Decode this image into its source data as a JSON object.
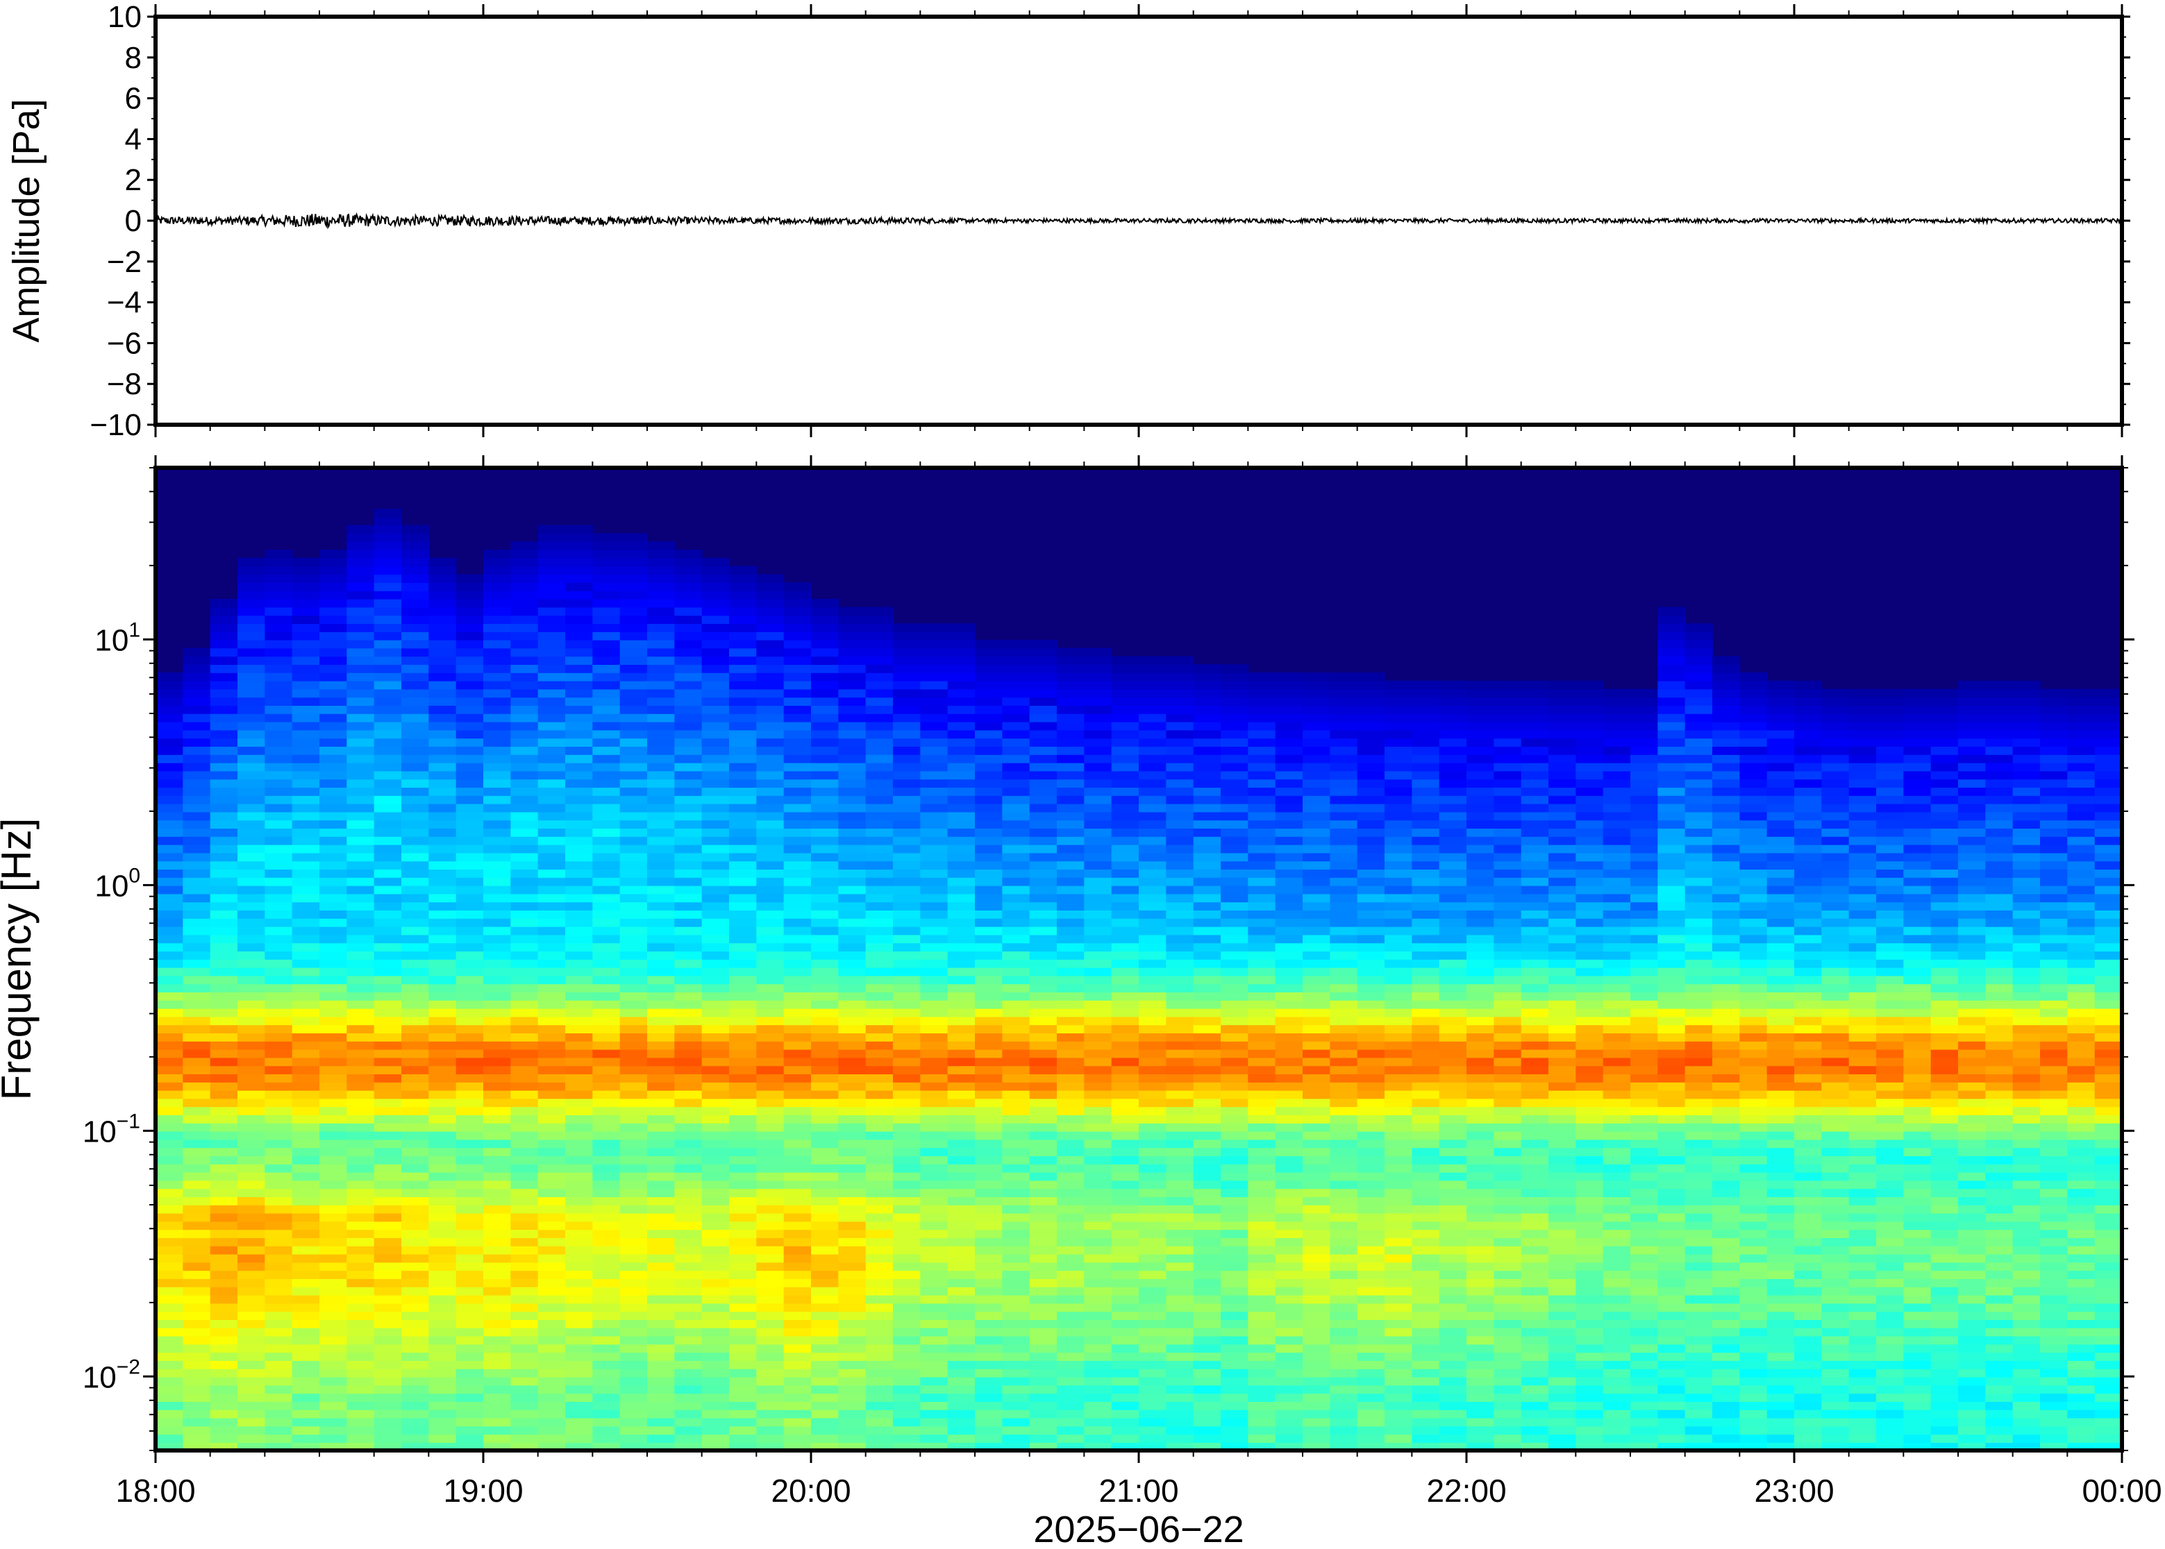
{
  "chart_data": [
    {
      "type": "line",
      "title": "",
      "xlabel": "",
      "ylabel": "Amplitude [Pa]",
      "ylim": [
        -10,
        10
      ],
      "y_ticks": [
        -10,
        -8,
        -6,
        -4,
        -2,
        0,
        2,
        4,
        6,
        8,
        10
      ],
      "y_tick_labels": [
        "−10",
        "−8",
        "−6",
        "−4",
        "−2",
        "0",
        "2",
        "4",
        "6",
        "8",
        "10"
      ],
      "x_range": [
        "2025-06-22 18:00",
        "2025-06-23 00:00"
      ],
      "series": [
        {
          "description_note": "",
          "x": [
            "18:00",
            "18:15",
            "18:30",
            "18:45",
            "19:00",
            "19:15",
            "19:30",
            "19:45",
            "20:00",
            "20:15",
            "20:30",
            "20:45",
            "21:00",
            "21:15",
            "21:30",
            "21:45",
            "22:00",
            "22:15",
            "22:30",
            "22:45",
            "23:00",
            "23:15",
            "23:30",
            "23:45",
            "00:00"
          ],
          "envelope": [
            0.2,
            0.2,
            0.35,
            0.25,
            0.25,
            0.2,
            0.2,
            0.15,
            0.15,
            0.15,
            0.1,
            0.1,
            0.1,
            0.1,
            0.1,
            0.1,
            0.1,
            0.1,
            0.1,
            0.1,
            0.1,
            0.1,
            0.1,
            0.1,
            0.1
          ],
          "color": "#000000"
        }
      ],
      "grid": false,
      "legend": "none"
    },
    {
      "type": "heatmap",
      "title": "",
      "xlabel": "2025−06−22",
      "ylabel": "Frequency [Hz]",
      "y_scale": "log",
      "ylim": [
        0.005,
        50
      ],
      "y_ticks": [
        0.01,
        0.1,
        1,
        10
      ],
      "y_tick_labels": [
        {
          "base": "10",
          "exp": "−2"
        },
        {
          "base": "10",
          "exp": "−1"
        },
        {
          "base": "10",
          "exp": "0"
        },
        {
          "base": "10",
          "exp": "1"
        }
      ],
      "x_tick_labels": [
        "18:00",
        "19:00",
        "20:00",
        "21:00",
        "22:00",
        "23:00",
        "00:00"
      ],
      "x_range": [
        "2025-06-22 18:00",
        "2025-06-23 00:00"
      ],
      "colormap": "jet",
      "background_color": "#0a0078",
      "columns": 72,
      "upper_cutoff_hz": [
        4.5,
        5.5,
        9,
        13,
        13.5,
        13,
        14,
        18,
        20,
        17,
        13,
        11,
        14,
        15,
        17,
        17,
        16,
        16,
        15,
        14,
        13,
        12,
        11,
        10,
        9,
        8,
        8,
        7,
        7,
        7,
        6,
        6,
        6,
        5.5,
        5.5,
        5,
        5,
        5,
        4.8,
        4.6,
        4.5,
        4.5,
        4.4,
        4.3,
        4.3,
        4.2,
        4.2,
        4.1,
        4,
        4,
        4,
        3.9,
        3.9,
        3.8,
        3.8,
        8,
        7,
        5,
        4.5,
        4.2,
        4,
        3.8,
        3.7,
        3.7,
        3.8,
        3.8,
        4,
        4,
        4,
        3.8,
        3.7,
        3.7
      ],
      "low_freq_band_strength": [
        0.8,
        0.85,
        0.9,
        0.9,
        0.85,
        0.8,
        0.8,
        0.8,
        0.82,
        0.78,
        0.75,
        0.75,
        0.8,
        0.78,
        0.76,
        0.74,
        0.7,
        0.7,
        0.7,
        0.68,
        0.7,
        0.75,
        0.8,
        0.85,
        0.82,
        0.78,
        0.7,
        0.65,
        0.62,
        0.6,
        0.58,
        0.56,
        0.6,
        0.58,
        0.55,
        0.55,
        0.55,
        0.55,
        0.52,
        0.5,
        0.6,
        0.62,
        0.65,
        0.6,
        0.65,
        0.68,
        0.6,
        0.58,
        0.6,
        0.55,
        0.55,
        0.52,
        0.5,
        0.48,
        0.48,
        0.45,
        0.45,
        0.45,
        0.45,
        0.45,
        0.45,
        0.45,
        0.45,
        0.45,
        0.45,
        0.45,
        0.45,
        0.45,
        0.45,
        0.45,
        0.45,
        0.45
      ],
      "mid_band_center_hz": 0.19,
      "grid": false,
      "legend": "none"
    }
  ]
}
